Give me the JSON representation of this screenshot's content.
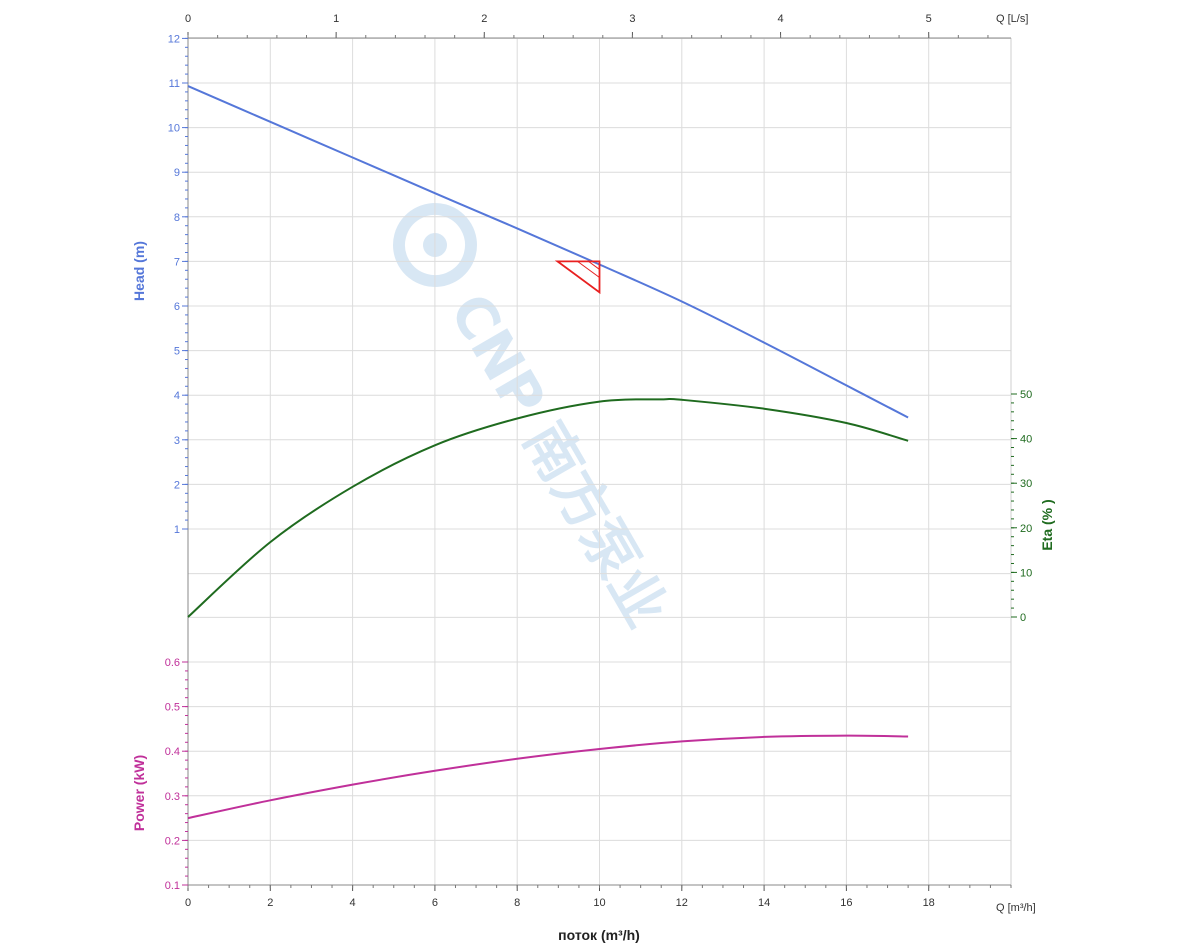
{
  "colors": {
    "head": "#5577d9",
    "eta": "#1f6b1f",
    "power": "#c0309a",
    "duty_point": "#e82020",
    "grid": "#dcdcdc",
    "axis": "#888888",
    "watermark": "#b9d4ec"
  },
  "watermark": {
    "text": "CNP 南方泵业",
    "logo": "CNP"
  },
  "chart_data": {
    "type": "line",
    "grid": true,
    "x": {
      "label": "поток (m³/h)",
      "unit_label": "Q [m³/h]",
      "range": [
        0,
        20
      ],
      "ticks": [
        0,
        2,
        4,
        6,
        8,
        10,
        12,
        14,
        16,
        18
      ],
      "secondary": {
        "unit_label": "Q [L/s]",
        "ticks": [
          0,
          1,
          2,
          3,
          4,
          5
        ]
      }
    },
    "axes": {
      "head": {
        "label": "Head (m)",
        "range": [
          0,
          12
        ],
        "ticks": [
          1,
          2,
          3,
          4,
          5,
          6,
          7,
          8,
          9,
          10,
          11,
          12
        ]
      },
      "eta": {
        "label": "Eta (% )",
        "range": [
          0,
          50
        ],
        "ticks": [
          0,
          10,
          20,
          30,
          40,
          50
        ]
      },
      "power": {
        "label": "Power (kW)",
        "range": [
          0.1,
          0.6
        ],
        "ticks": [
          0.1,
          0.2,
          0.3,
          0.4,
          0.5,
          0.6
        ]
      }
    },
    "series": [
      {
        "name": "Head (m)",
        "axis": "head",
        "points": [
          [
            0,
            10.93
          ],
          [
            2,
            10.13
          ],
          [
            4,
            9.33
          ],
          [
            6,
            8.53
          ],
          [
            8,
            7.74
          ],
          [
            10,
            6.93
          ],
          [
            12,
            6.1
          ],
          [
            14,
            5.18
          ],
          [
            16,
            4.22
          ],
          [
            17.5,
            3.5
          ]
        ]
      },
      {
        "name": "Eta (% )",
        "axis": "eta",
        "points": [
          [
            0,
            0
          ],
          [
            2,
            16.8
          ],
          [
            4,
            29.2
          ],
          [
            6,
            38.5
          ],
          [
            8,
            44.5
          ],
          [
            10,
            48.3
          ],
          [
            11.5,
            48.8
          ],
          [
            12,
            48.7
          ],
          [
            14,
            46.7
          ],
          [
            16,
            43.5
          ],
          [
            17.5,
            39.5
          ]
        ]
      },
      {
        "name": "Power (kW)",
        "axis": "power",
        "points": [
          [
            0,
            0.25
          ],
          [
            2,
            0.29
          ],
          [
            4,
            0.325
          ],
          [
            6,
            0.356
          ],
          [
            8,
            0.383
          ],
          [
            10,
            0.405
          ],
          [
            12,
            0.422
          ],
          [
            14,
            0.432
          ],
          [
            16,
            0.435
          ],
          [
            17.5,
            0.433
          ]
        ]
      }
    ],
    "duty_point": {
      "flow": 10,
      "head": 7
    }
  }
}
